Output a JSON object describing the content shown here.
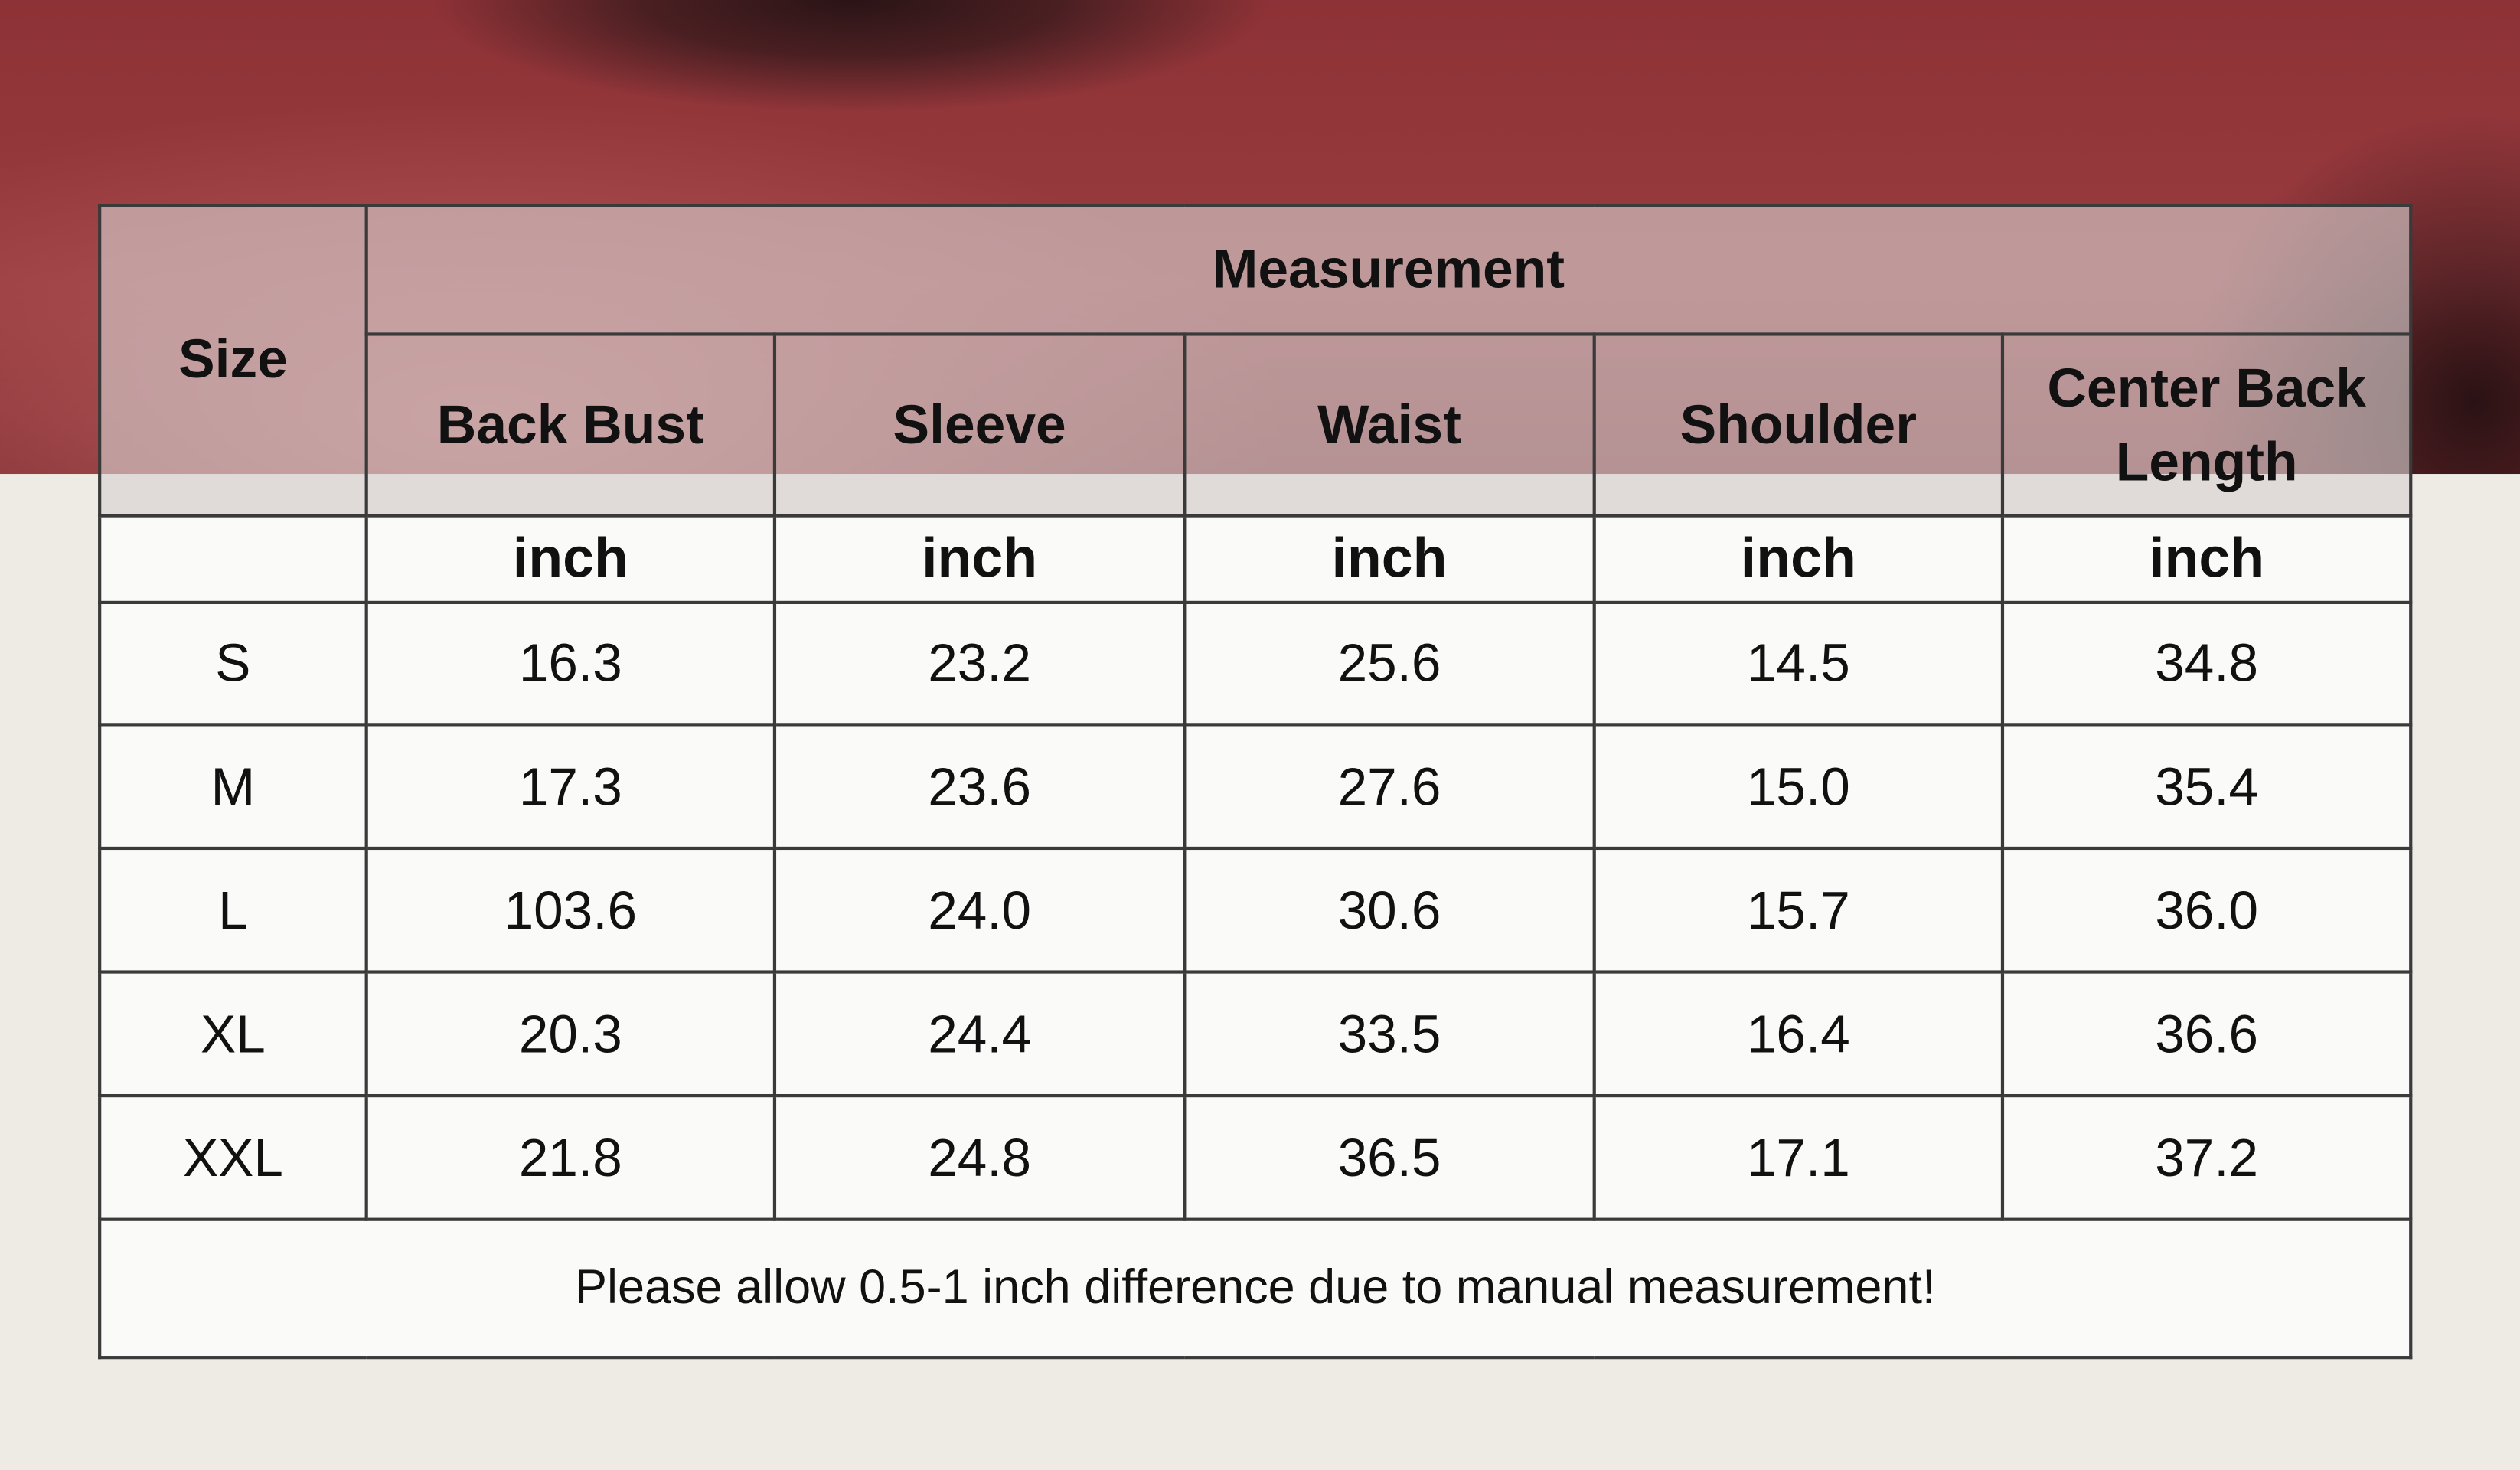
{
  "table": {
    "size_header": "Size",
    "group_header": "Measurement",
    "columns": [
      "Back Bust",
      "Sleeve",
      "Waist",
      "Shoulder",
      "Center Back Length"
    ],
    "units": [
      "inch",
      "inch",
      "inch",
      "inch",
      "inch"
    ],
    "rows": [
      [
        "S",
        "16.3",
        "23.2",
        "25.6",
        "14.5",
        "34.8"
      ],
      [
        "M",
        "17.3",
        "23.6",
        "27.6",
        "15.0",
        "35.4"
      ],
      [
        "L",
        "103.6",
        "24.0",
        "30.6",
        "15.7",
        "36.0"
      ],
      [
        "XL",
        "20.3",
        "24.4",
        "33.5",
        "16.4",
        "36.6"
      ],
      [
        "XXL",
        "21.8",
        "24.8",
        "36.5",
        "17.1",
        "37.2"
      ]
    ],
    "note": "Please allow 0.5-1 inch difference due to manual measurement!"
  }
}
